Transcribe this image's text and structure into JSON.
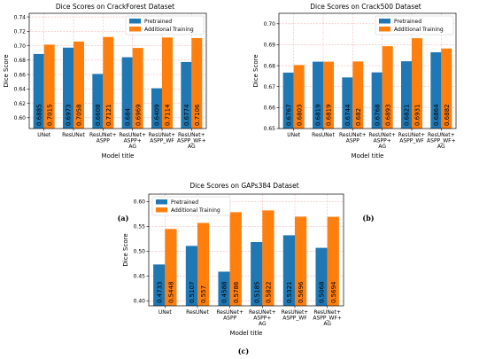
{
  "colors": {
    "pretrained": "#1f77b4",
    "additional": "#ff7f0e",
    "grid": "#f4a6a6"
  },
  "chart_data": [
    {
      "type": "bar",
      "title": "Dice Scores on CrackForest Dataset",
      "xlabel": "Model title",
      "ylabel": "Dice Score",
      "categories": [
        "UNet",
        "ResUNet",
        "ResUNet+\nASPP",
        "ResUNet+\nASPP+\nAG",
        "ResUNet+\nASPP_WF",
        "ResUNet+\nASPP_WF+\nAG"
      ],
      "ylim": [
        0.585,
        0.745
      ],
      "yticks": [
        "0.60",
        "0.62",
        "0.64",
        "0.66",
        "0.68",
        "0.70",
        "0.72",
        "0.74"
      ],
      "grid": true,
      "legend": "top-right",
      "series": [
        {
          "name": "Pretrained",
          "values": [
            0.6885,
            0.6973,
            0.6608,
            0.684,
            0.6409,
            0.6774
          ],
          "labels": [
            "0.6885",
            "0.6973",
            "0.6608",
            "0.684",
            "0.6409",
            "0.6774"
          ]
        },
        {
          "name": "Additional Training",
          "values": [
            0.7015,
            0.7058,
            0.7121,
            0.6969,
            0.7114,
            0.7106
          ],
          "labels": [
            "0.7015",
            "0.7058",
            "0.7121",
            "0.6969",
            "0.7114",
            "0.7106"
          ]
        }
      ],
      "caption": "(a)"
    },
    {
      "type": "bar",
      "title": "Dice Scores on Crack500 Dataset",
      "xlabel": "Model title",
      "ylabel": "Dice Score",
      "categories": [
        "UNet",
        "ResUNet",
        "ResUNet+\nASPP",
        "ResUNet+\nASPP+\nAG",
        "ResUNet+\nASPP_WF",
        "ResUNet+\nASPP_WF+\nAG"
      ],
      "ylim": [
        0.65,
        0.705
      ],
      "yticks": [
        "0.65",
        "0.66",
        "0.67",
        "0.68",
        "0.69",
        "0.70"
      ],
      "grid": true,
      "legend": "top-right",
      "series": [
        {
          "name": "Pretrained",
          "values": [
            0.6767,
            0.6819,
            0.6744,
            0.6768,
            0.6821,
            0.6864
          ],
          "labels": [
            "0.6767",
            "0.6819",
            "0.6744",
            "0.6768",
            "0.6821",
            "0.6864"
          ]
        },
        {
          "name": "Additional Training",
          "values": [
            0.6803,
            0.6819,
            0.682,
            0.6893,
            0.6931,
            0.6882
          ],
          "labels": [
            "0.6803",
            "0.6819",
            "0.682",
            "0.6893",
            "0.6931",
            "0.6882"
          ]
        }
      ],
      "caption": "(b)"
    },
    {
      "type": "bar",
      "title": "Dice Scores on GAPs384 Dataset",
      "xlabel": "Model title",
      "ylabel": "Dice Score",
      "categories": [
        "UNet",
        "ResUNet",
        "ResUNet+\nASPP",
        "ResUNet+\nASPP+\nAG",
        "ResUNet+\nASPP_WF",
        "ResUNet+\nASPP_WF+\nAG"
      ],
      "ylim": [
        0.39,
        0.615
      ],
      "yticks": [
        "0.40",
        "0.45",
        "0.50",
        "0.55",
        "0.60"
      ],
      "grid": true,
      "legend": "top-left",
      "series": [
        {
          "name": "Pretrained",
          "values": [
            0.4733,
            0.5107,
            0.4588,
            0.5185,
            0.5321,
            0.5068
          ],
          "labels": [
            "0.4733",
            "0.5107",
            "0.4588",
            "0.5185",
            "0.5321",
            "0.5068"
          ]
        },
        {
          "name": "Additional Training",
          "values": [
            0.5448,
            0.557,
            0.5786,
            0.5822,
            0.5696,
            0.5694
          ],
          "labels": [
            "0.5448",
            "0.557",
            "0.5786",
            "0.5822",
            "0.5696",
            "0.5694"
          ]
        }
      ],
      "caption": "(c)"
    }
  ]
}
